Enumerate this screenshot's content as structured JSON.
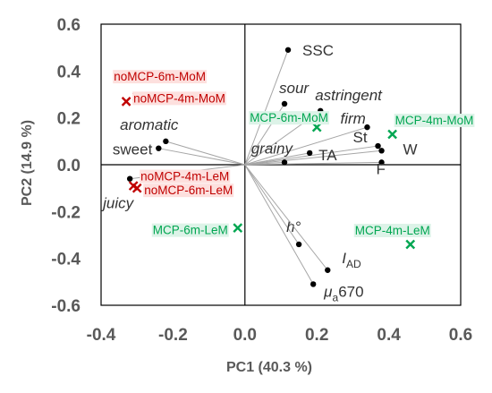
{
  "chart_data": {
    "type": "scatter",
    "subtype": "pca-biplot",
    "xlabel": "PC1 (40.3 %)",
    "ylabel": "PC2 (14.9 %)",
    "xlim": [
      -0.4,
      0.6
    ],
    "ylim": [
      -0.6,
      0.6
    ],
    "x_ticks": [
      -0.4,
      -0.2,
      0.0,
      0.2,
      0.4,
      0.6
    ],
    "y_ticks": [
      -0.6,
      -0.4,
      -0.2,
      0.0,
      0.2,
      0.4,
      0.6
    ],
    "x_tick_labels": [
      "-0.4",
      "-0.2",
      "0.0",
      "0.2",
      "0.4",
      "0.6"
    ],
    "y_tick_labels": [
      "-0.6",
      "-0.4",
      "-0.2",
      "0.0",
      "0.2",
      "0.4",
      "0.6"
    ],
    "grid": false,
    "colors": {
      "noMCP": "#c00000",
      "MCP": "#00a651",
      "noMCP_label_bg": "#fde0de",
      "MCP_label_bg": "#ddf3e8",
      "loading_line": "#a6a6a6",
      "loading_point": "#000000",
      "axis_text": "#595959"
    },
    "loadings": [
      {
        "label": "SSC",
        "x": 0.12,
        "y": 0.49
      },
      {
        "label": "sour",
        "x": 0.11,
        "y": 0.26
      },
      {
        "label": "astringent",
        "x": 0.21,
        "y": 0.23
      },
      {
        "label": "firm",
        "x": 0.34,
        "y": 0.16
      },
      {
        "label": "St",
        "x": 0.37,
        "y": 0.08
      },
      {
        "label": "W",
        "x": 0.38,
        "y": 0.06
      },
      {
        "label": "F",
        "x": 0.38,
        "y": 0.01
      },
      {
        "label": "TA",
        "x": 0.18,
        "y": 0.05
      },
      {
        "label": "grainy",
        "x": 0.11,
        "y": 0.01
      },
      {
        "label": "aromatic",
        "x": -0.22,
        "y": 0.1
      },
      {
        "label": "sweet",
        "x": -0.24,
        "y": 0.07
      },
      {
        "label": "juicy",
        "x": -0.32,
        "y": -0.06
      },
      {
        "label": "h°",
        "x": 0.15,
        "y": -0.34
      },
      {
        "label": "I_AD",
        "label_main": "I",
        "label_sub": "AD",
        "x": 0.23,
        "y": -0.45
      },
      {
        "label": "μa670",
        "label_main": "μ",
        "label_sub": "a",
        "label_rest": "670",
        "x": 0.19,
        "y": -0.51
      }
    ],
    "series": [
      {
        "name": "noMCP",
        "points": [
          {
            "label": "noMCP-6m-MoM",
            "x": -0.3,
            "y": 0.29
          },
          {
            "label": "noMCP-4m-MoM",
            "x": -0.33,
            "y": 0.27
          },
          {
            "label": "noMCP-4m-LeM",
            "x": -0.31,
            "y": -0.09
          },
          {
            "label": "noMCP-6m-LeM",
            "x": -0.3,
            "y": -0.1
          }
        ]
      },
      {
        "name": "MCP",
        "points": [
          {
            "label": "MCP-6m-MoM",
            "x": 0.2,
            "y": 0.16
          },
          {
            "label": "MCP-4m-MoM",
            "x": 0.41,
            "y": 0.13
          },
          {
            "label": "MCP-6m-LeM",
            "x": -0.02,
            "y": -0.27
          },
          {
            "label": "MCP-4m-LeM",
            "x": 0.46,
            "y": -0.34
          }
        ]
      }
    ]
  }
}
